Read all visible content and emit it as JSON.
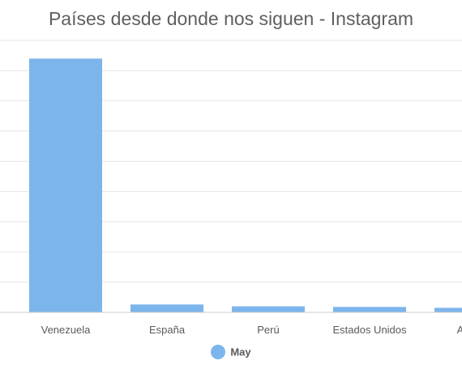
{
  "chart_data": {
    "type": "bar",
    "title": "Países desde donde nos siguen - Instagram",
    "categories": [
      "Venezuela",
      "España",
      "Perú",
      "Estados Unidos",
      "Argen"
    ],
    "series": [
      {
        "name": "May",
        "values": [
          84,
          2.6,
          2.0,
          1.8,
          1.5
        ],
        "color": "#7cb5ec"
      }
    ],
    "ylim": [
      0,
      90
    ],
    "y_grid_step": 10,
    "grid": true,
    "legend_position": "bottom-center",
    "xlabel": "",
    "ylabel": ""
  }
}
